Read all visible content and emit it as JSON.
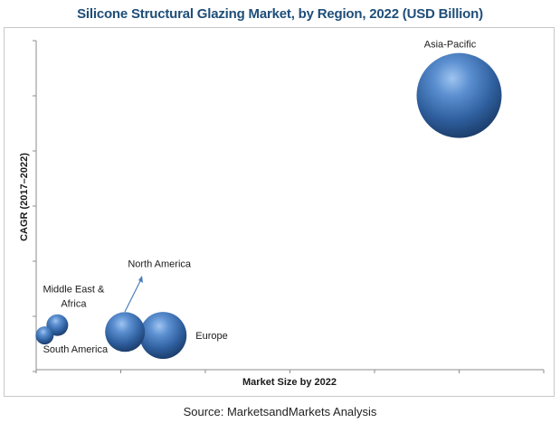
{
  "chart_data": {
    "type": "bubble",
    "title": "Silicone Structural Glazing Market, by Region, 2022 (USD Billion)",
    "xlabel": "Market Size by 2022",
    "ylabel": "CAGR (2017–2022)",
    "grid": false,
    "axis_ticks_labeled": false,
    "points": [
      {
        "name": "Asia-Pacific",
        "x": 10.0,
        "y": 8.0,
        "size": 47
      },
      {
        "name": "Europe",
        "x": 3.0,
        "y": 1.0,
        "size": 26
      },
      {
        "name": "North America",
        "x": 2.1,
        "y": 1.1,
        "size": 22
      },
      {
        "name": "Middle East & Africa",
        "x": 0.5,
        "y": 1.3,
        "size": 12
      },
      {
        "name": "South America",
        "x": 0.2,
        "y": 1.0,
        "size": 10
      }
    ],
    "bubble_color": "#4a7ebb"
  },
  "source": "Source: MarketsandMarkets Analysis"
}
